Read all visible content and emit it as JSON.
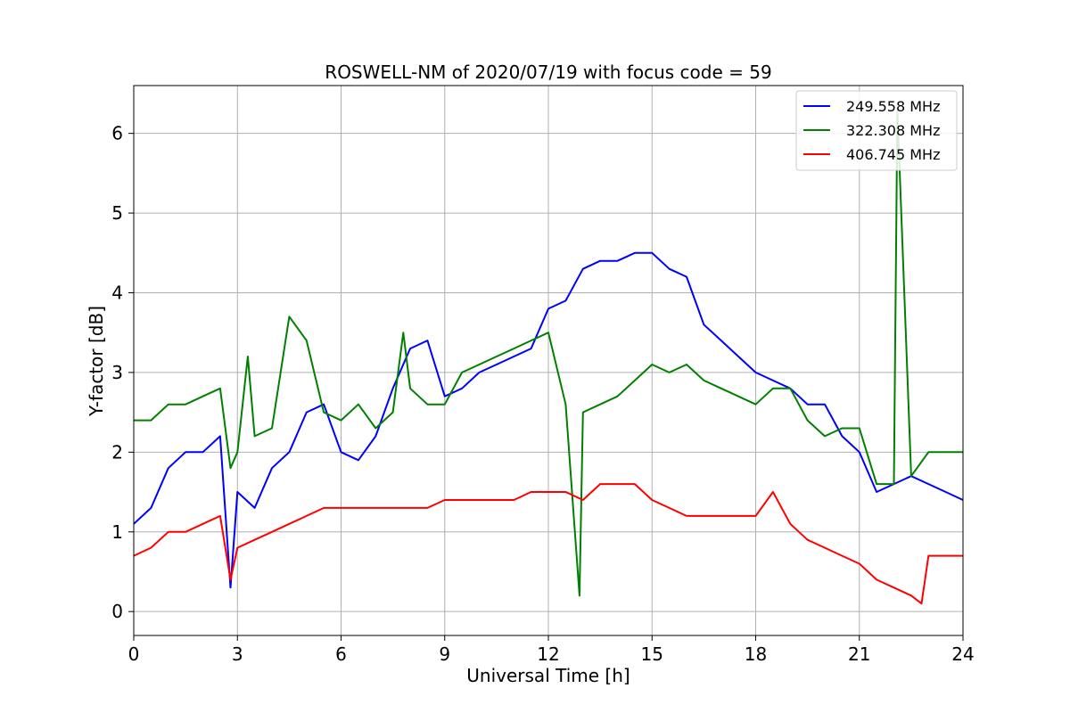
{
  "chart_data": {
    "type": "line",
    "title": "ROSWELL-NM of 2020/07/19 with focus code = 59",
    "xlabel": "Universal Time [h]",
    "ylabel": "Y-factor [dB]",
    "xlim": [
      0,
      24
    ],
    "ylim": [
      -0.3,
      6.6
    ],
    "xticks": [
      0,
      3,
      6,
      9,
      12,
      15,
      18,
      21,
      24
    ],
    "xtick_labels": [
      "0",
      "3",
      "6",
      "9",
      "12",
      "15",
      "18",
      "21",
      "24"
    ],
    "yticks": [
      0,
      1,
      2,
      3,
      4,
      5,
      6
    ],
    "ytick_labels": [
      "0",
      "1",
      "2",
      "3",
      "4",
      "5",
      "6"
    ],
    "grid": true,
    "legend_position": "top-right",
    "series": [
      {
        "name": "249.558 MHz",
        "color": "#0000ff",
        "x": [
          0,
          0.5,
          1.0,
          1.5,
          2.0,
          2.5,
          2.8,
          3.0,
          3.5,
          4.0,
          4.5,
          5.0,
          5.5,
          6.0,
          6.5,
          7.0,
          7.5,
          8.0,
          8.5,
          9.0,
          9.5,
          10.0,
          10.5,
          11.0,
          11.5,
          12.0,
          12.5,
          13.0,
          13.5,
          14.0,
          14.5,
          15.0,
          15.5,
          16.0,
          16.5,
          17.0,
          17.5,
          18.0,
          18.5,
          19.0,
          19.5,
          20.0,
          20.5,
          21.0,
          21.5,
          22.0,
          22.5,
          23.0,
          23.5,
          24.0
        ],
        "values": [
          1.1,
          1.3,
          1.8,
          2.0,
          2.0,
          2.2,
          0.3,
          1.5,
          1.3,
          1.8,
          2.0,
          2.5,
          2.6,
          2.0,
          1.9,
          2.2,
          2.8,
          3.3,
          3.4,
          2.7,
          2.8,
          3.0,
          3.1,
          3.2,
          3.3,
          3.8,
          3.9,
          4.3,
          4.4,
          4.4,
          4.5,
          4.5,
          4.3,
          4.2,
          3.6,
          3.4,
          3.2,
          3.0,
          2.9,
          2.8,
          2.6,
          2.6,
          2.2,
          2.0,
          1.5,
          1.6,
          1.7,
          1.6,
          1.5,
          1.4
        ]
      },
      {
        "name": "322.308 MHz",
        "color": "#008000",
        "x": [
          0,
          0.5,
          1.0,
          1.5,
          2.0,
          2.5,
          2.8,
          3.0,
          3.3,
          3.5,
          4.0,
          4.5,
          5.0,
          5.5,
          6.0,
          6.5,
          7.0,
          7.5,
          7.8,
          8.0,
          8.5,
          9.0,
          9.5,
          10.0,
          10.5,
          11.0,
          11.5,
          12.0,
          12.5,
          12.9,
          13.0,
          13.5,
          14.0,
          14.5,
          15.0,
          15.5,
          16.0,
          16.5,
          17.0,
          17.5,
          18.0,
          18.5,
          19.0,
          19.5,
          20.0,
          20.5,
          21.0,
          21.5,
          22.0,
          22.1,
          22.5,
          23.0,
          23.5,
          24.0
        ],
        "values": [
          2.4,
          2.4,
          2.6,
          2.6,
          2.7,
          2.8,
          1.8,
          2.0,
          3.2,
          2.2,
          2.3,
          3.7,
          3.4,
          2.5,
          2.4,
          2.6,
          2.3,
          2.5,
          3.5,
          2.8,
          2.6,
          2.6,
          3.0,
          3.1,
          3.2,
          3.3,
          3.4,
          3.5,
          2.6,
          0.2,
          2.5,
          2.6,
          2.7,
          2.9,
          3.1,
          3.0,
          3.1,
          2.9,
          2.8,
          2.7,
          2.6,
          2.8,
          2.8,
          2.4,
          2.2,
          2.3,
          2.3,
          1.6,
          1.6,
          6.3,
          1.7,
          2.0,
          2.0,
          2.0
        ]
      },
      {
        "name": "406.745 MHz",
        "color": "#ff0000",
        "x": [
          0,
          0.5,
          1.0,
          1.5,
          2.0,
          2.5,
          2.8,
          3.0,
          3.5,
          4.0,
          4.5,
          5.0,
          5.5,
          6.0,
          6.5,
          7.0,
          7.5,
          8.0,
          8.5,
          9.0,
          9.5,
          10.0,
          10.5,
          11.0,
          11.5,
          12.0,
          12.5,
          13.0,
          13.5,
          14.0,
          14.5,
          15.0,
          15.5,
          16.0,
          16.5,
          17.0,
          17.5,
          18.0,
          18.5,
          19.0,
          19.5,
          20.0,
          20.5,
          21.0,
          21.5,
          22.0,
          22.5,
          22.8,
          23.0,
          23.5,
          24.0
        ],
        "values": [
          0.7,
          0.8,
          1.0,
          1.0,
          1.1,
          1.2,
          0.4,
          0.8,
          0.9,
          1.0,
          1.1,
          1.2,
          1.3,
          1.3,
          1.3,
          1.3,
          1.3,
          1.3,
          1.3,
          1.4,
          1.4,
          1.4,
          1.4,
          1.4,
          1.5,
          1.5,
          1.5,
          1.4,
          1.6,
          1.6,
          1.6,
          1.4,
          1.3,
          1.2,
          1.2,
          1.2,
          1.2,
          1.2,
          1.5,
          1.1,
          0.9,
          0.8,
          0.7,
          0.6,
          0.4,
          0.3,
          0.2,
          0.1,
          0.7,
          0.7,
          0.7
        ]
      }
    ]
  }
}
